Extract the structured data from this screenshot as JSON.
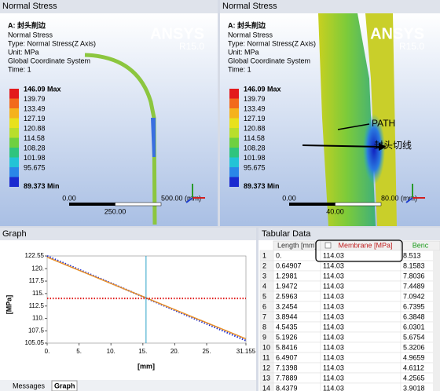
{
  "panels": [
    {
      "title": "Normal Stress",
      "result": "A: 封头削边",
      "info": [
        "Normal Stress",
        "Type: Normal Stress(Z Axis)",
        "Unit: MPa",
        "Global Coordinate System",
        "Time: 1"
      ],
      "legend": [
        "146.09 Max",
        "139.79",
        "133.49",
        "127.19",
        "120.88",
        "114.58",
        "108.28",
        "101.98",
        "95.675",
        "89.373 Min"
      ],
      "logo": "ANSYS",
      "version": "R15.0",
      "scale": {
        "start": "0.00",
        "end": "500.00 (mm)",
        "mid": "250.00"
      }
    },
    {
      "title": "Normal Stress",
      "result": "A: 封头削边",
      "info": [
        "Normal Stress",
        "Type: Normal Stress(Z Axis)",
        "Unit: MPa",
        "Global Coordinate System",
        "Time: 1"
      ],
      "legend": [
        "146.09 Max",
        "139.79",
        "133.49",
        "127.19",
        "120.88",
        "114.58",
        "108.28",
        "101.98",
        "95.675",
        "89.373 Min"
      ],
      "logo": "ANSYS",
      "version": "R15.0",
      "scale": {
        "start": "0.00",
        "end": "80.00 (mm)",
        "mid": "40.00"
      },
      "annotations": [
        "PATH",
        "封头切线"
      ]
    }
  ],
  "graph": {
    "title": "Graph",
    "type": "line",
    "ylabel": "[MPa]",
    "xlabel": "[mm]",
    "xlim": [
      0,
      31.155
    ],
    "ylim": [
      105.05,
      122.55
    ],
    "xticks": [
      {
        "value": 0,
        "label": "0."
      },
      {
        "value": 5,
        "label": "5."
      },
      {
        "value": 10,
        "label": "10."
      },
      {
        "value": 15,
        "label": "15."
      },
      {
        "value": 20,
        "label": "20."
      },
      {
        "value": 25,
        "label": "25."
      },
      31.155
    ],
    "yticks": [
      122.55,
      {
        "value": 120,
        "label": "120."
      },
      117.5,
      {
        "value": 115,
        "label": "115."
      },
      112.5,
      {
        "value": 110,
        "label": "110."
      },
      107.5,
      105.05
    ],
    "cursor": 15.5,
    "series": [
      {
        "color": "#1f2fd0",
        "x": [
          0,
          31.155
        ],
        "values": [
          122.55,
          105.55
        ]
      },
      {
        "color": "#e8902a",
        "x": [
          0,
          31.155
        ],
        "values": [
          122.3,
          105.9
        ]
      },
      {
        "color": "#e02020",
        "x": [
          0,
          31.155
        ],
        "values": [
          114.03,
          114.03
        ]
      }
    ]
  },
  "tabs": [
    "Messages",
    "Graph"
  ],
  "table": {
    "title": "Tabular Data",
    "columns": [
      "Length [mm]",
      "Membrane [MPa]",
      "Benc"
    ],
    "rows": [
      [
        "1",
        "0.",
        "114.03",
        "8.513"
      ],
      [
        "2",
        "0.64907",
        "114.03",
        "8.1583"
      ],
      [
        "3",
        "1.2981",
        "114.03",
        "7.8036"
      ],
      [
        "4",
        "1.9472",
        "114.03",
        "7.4489"
      ],
      [
        "5",
        "2.5963",
        "114.03",
        "7.0942"
      ],
      [
        "6",
        "3.2454",
        "114.03",
        "6.7395"
      ],
      [
        "7",
        "3.8944",
        "114.03",
        "6.3848"
      ],
      [
        "8",
        "4.5435",
        "114.03",
        "6.0301"
      ],
      [
        "9",
        "5.1926",
        "114.03",
        "5.6754"
      ],
      [
        "10",
        "5.8416",
        "114.03",
        "5.3206"
      ],
      [
        "11",
        "6.4907",
        "114.03",
        "4.9659"
      ],
      [
        "12",
        "7.1398",
        "114.03",
        "4.6112"
      ],
      [
        "13",
        "7.7889",
        "114.03",
        "4.2565"
      ],
      [
        "14",
        "8.4379",
        "114.03",
        "3.9018"
      ]
    ]
  }
}
